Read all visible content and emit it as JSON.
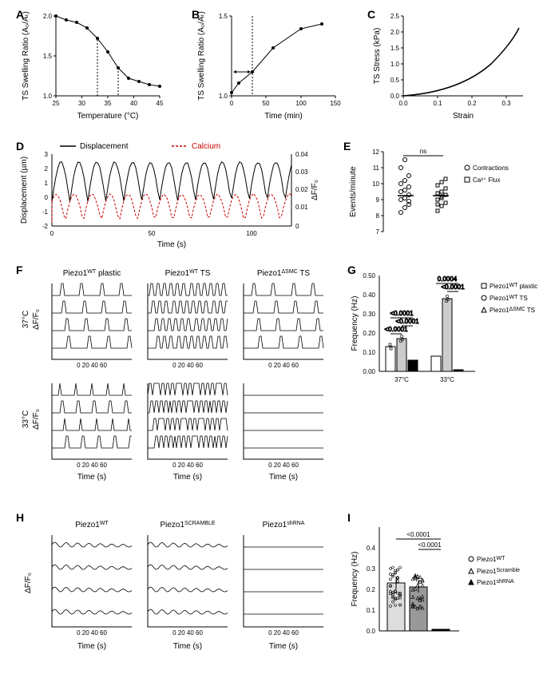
{
  "colors": {
    "bg": "#ffffff",
    "line": "#000000",
    "red": "#cc0000",
    "gray_fill": "#cccccc",
    "dark_fill": "#888888",
    "black_fill": "#000000",
    "white_fill": "#ffffff"
  },
  "A": {
    "label": "A",
    "xlabel": "Temperature  (°C)",
    "ylabel": "TS Swelling Ratio (A₀/Aₜ)",
    "xlim": [
      25,
      45
    ],
    "xtick": [
      25,
      30,
      35,
      40,
      45
    ],
    "ylim": [
      1.0,
      2.0
    ],
    "ytick": [
      1.0,
      1.5,
      2.0
    ],
    "x": [
      25,
      27,
      29,
      31,
      33,
      35,
      37,
      39,
      41,
      43,
      45
    ],
    "y": [
      2.0,
      1.95,
      1.92,
      1.85,
      1.72,
      1.55,
      1.35,
      1.22,
      1.18,
      1.14,
      1.12
    ],
    "vlines": [
      33,
      37
    ]
  },
  "B": {
    "label": "B",
    "xlabel": "Time  (min)",
    "ylabel": "TS Swelling Ratio (A₀/Aₜ)",
    "xlim": [
      0,
      150
    ],
    "xtick": [
      0,
      50,
      100,
      150
    ],
    "ylim": [
      1.0,
      1.5
    ],
    "ytick": [
      1.0,
      1.5
    ],
    "x": [
      0,
      10,
      30,
      60,
      100,
      130
    ],
    "y": [
      1.02,
      1.08,
      1.15,
      1.3,
      1.42,
      1.45
    ],
    "vline": 30
  },
  "C": {
    "label": "C",
    "xlabel": "Strain",
    "ylabel": "TS Stress (kPa)",
    "xlim": [
      0.0,
      0.35
    ],
    "xtick": [
      0.0,
      0.1,
      0.2,
      0.3
    ],
    "ylim": [
      0.0,
      2.5
    ],
    "ytick": [
      0.0,
      0.5,
      1.0,
      1.5,
      2.0,
      2.5
    ]
  },
  "D": {
    "label": "D",
    "xlabel": "Time (s)",
    "legend1": "Displacement",
    "legend2": "Calcium",
    "xlim": [
      0,
      120
    ],
    "xtick": [
      0,
      50,
      100
    ],
    "ylim_l": [
      -2,
      3
    ],
    "ytick_l": [
      -2,
      -1,
      0,
      1,
      2,
      3
    ],
    "ylim_r": [
      0,
      0.04
    ],
    "ytick_r": [
      0,
      0.01,
      0.02,
      0.03,
      0.04
    ],
    "ylabel_l": "Displacement (µm)",
    "ylabel_r": "ΔF/F₀"
  },
  "E": {
    "label": "E",
    "ylabel": "Events/minute",
    "ylim": [
      7,
      12
    ],
    "ytick": [
      7,
      8,
      9,
      10,
      11,
      12
    ],
    "ns": "ns",
    "legend": [
      "Contractions",
      "Ca²⁺ Flux"
    ],
    "contractions": [
      8.2,
      8.5,
      8.7,
      9.0,
      9.1,
      9.3,
      9.5,
      9.6,
      9.8,
      10.0,
      10.2,
      10.5,
      11.0,
      11.5,
      8.9
    ],
    "caflux": [
      8.3,
      8.6,
      8.8,
      9.0,
      9.2,
      9.3,
      9.4,
      9.5,
      9.7,
      9.9,
      10.1,
      10.3,
      8.7,
      9.1
    ]
  },
  "F": {
    "label": "F",
    "titles": [
      "Piezo1",
      "Piezo1",
      "Piezo1"
    ],
    "sups": [
      "WT",
      " WT",
      "ΔSMC"
    ],
    "suffixes": [
      " plastic",
      " TS",
      " TS"
    ],
    "row_labels": [
      "37°C",
      "33°C"
    ],
    "ylabel": "ΔF/F₀",
    "xlabel": "Time (s)",
    "xlim": [
      0,
      60
    ],
    "xtick": [
      0,
      20,
      40,
      60
    ]
  },
  "G": {
    "label": "G",
    "ylabel": "Frequency (Hz)",
    "ylim": [
      0.0,
      0.5
    ],
    "ytick": [
      0.0,
      0.1,
      0.2,
      0.3,
      0.4,
      0.5
    ],
    "xgroups": [
      "37°C",
      "33°C"
    ],
    "legend": [
      "Piezo1",
      "Piezo1",
      "Piezo1"
    ],
    "legend_sup": [
      "WT",
      "WT",
      "ΔSMC"
    ],
    "legend_suf": [
      " plastic",
      " TS",
      " TS"
    ],
    "bars_37": [
      0.13,
      0.17,
      0.06
    ],
    "bars_33": [
      0.08,
      0.38,
      0.01
    ],
    "pvals": [
      "<0.0001",
      "<0.0001",
      "<0.0001",
      "<0.0001",
      "0.0004"
    ]
  },
  "H": {
    "label": "H",
    "titles": [
      "Piezo1",
      "Piezo1",
      "Piezo1"
    ],
    "sups": [
      "WT",
      "SCRAMBLE",
      "shRNA"
    ],
    "ylabel": "ΔF/F₀",
    "xlabel": "Time (s)",
    "xlim": [
      0,
      60
    ],
    "xtick": [
      0,
      20,
      40,
      60
    ]
  },
  "I": {
    "label": "I",
    "ylabel": "Frequency (Hz)",
    "ylim": [
      0.0,
      0.5
    ],
    "ytick": [
      0.0,
      0.1,
      0.2,
      0.3,
      0.4
    ],
    "bars": [
      0.23,
      0.21,
      0.005
    ],
    "legend": [
      "Piezo1",
      "Piezo1",
      "Piezo1"
    ],
    "legend_sup": [
      "WT",
      "Scramble",
      "shRNA"
    ],
    "pvals": [
      "<0.0001",
      "<0.0001"
    ]
  }
}
